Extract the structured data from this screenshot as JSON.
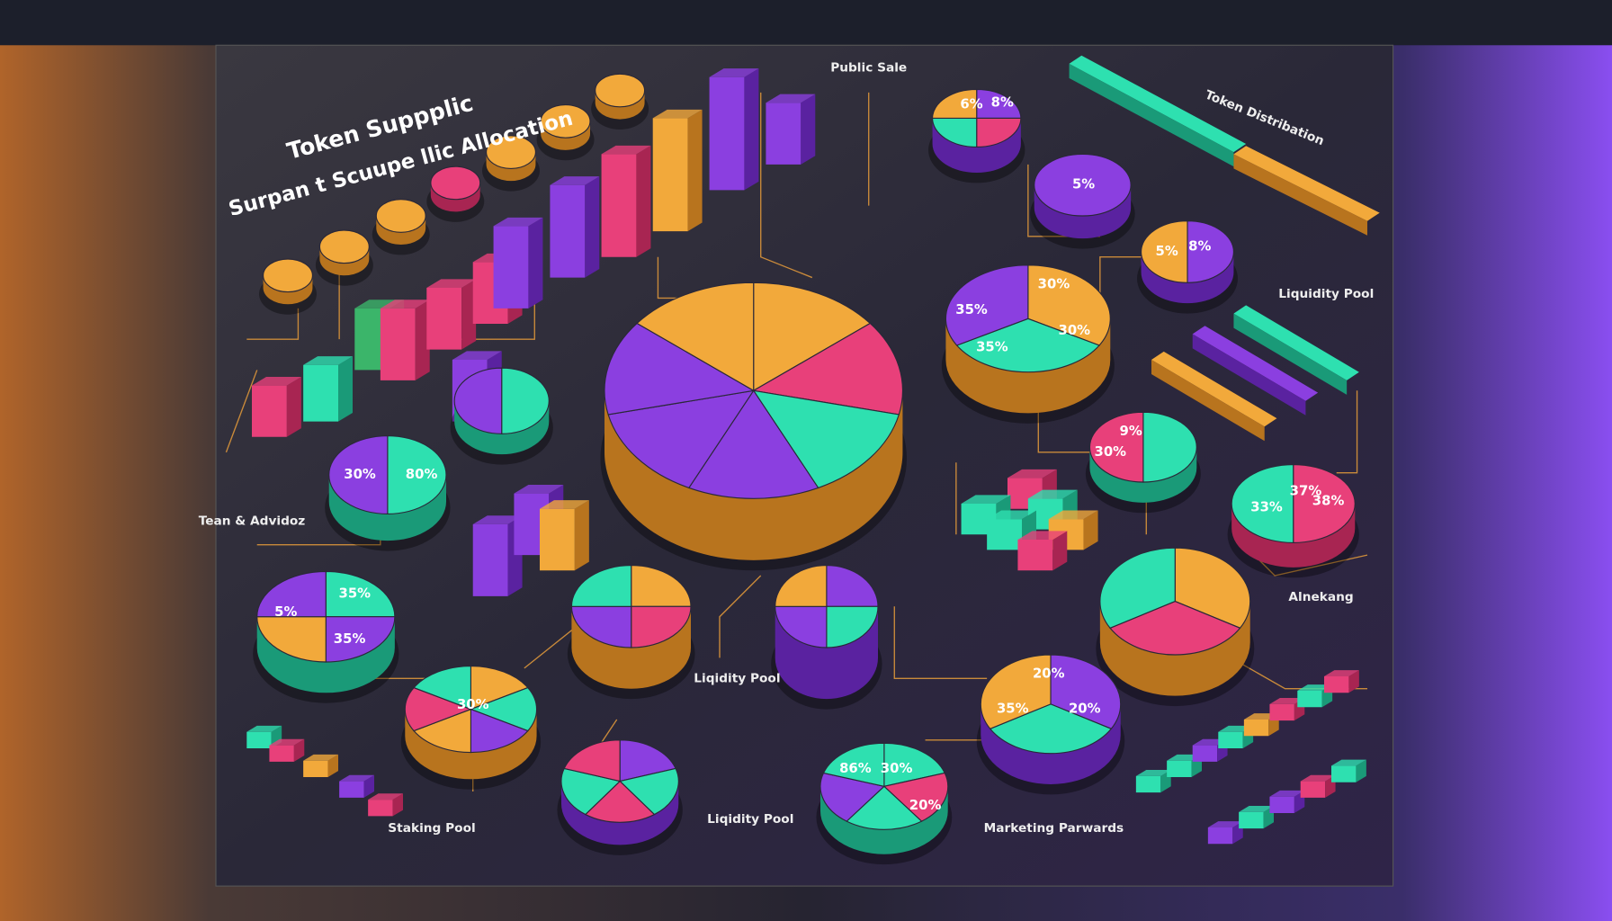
{
  "header": {
    "title": "Token Suppplic",
    "subtitle": "Surpan t Scuupe llic Allocation"
  },
  "labels": [
    "Public Sale",
    "Token Distribation",
    "Liquidity Pool",
    "Tean & Advidoz",
    "Liqidity Pool",
    "Staking Pool",
    "Liqidity Pool",
    "Marketing Parwards",
    "Alnekang"
  ],
  "percents": [
    "30%",
    "35%",
    "35%",
    "30%",
    "5%",
    "6%",
    "8%",
    "5%",
    "9%",
    "30%",
    "33%",
    "20%",
    "35%",
    "20%",
    "30%",
    "86%",
    "20%",
    "5%",
    "35%",
    "35%",
    "30%",
    "80%",
    "30%",
    "8%",
    "37%",
    "38%"
  ]
}
